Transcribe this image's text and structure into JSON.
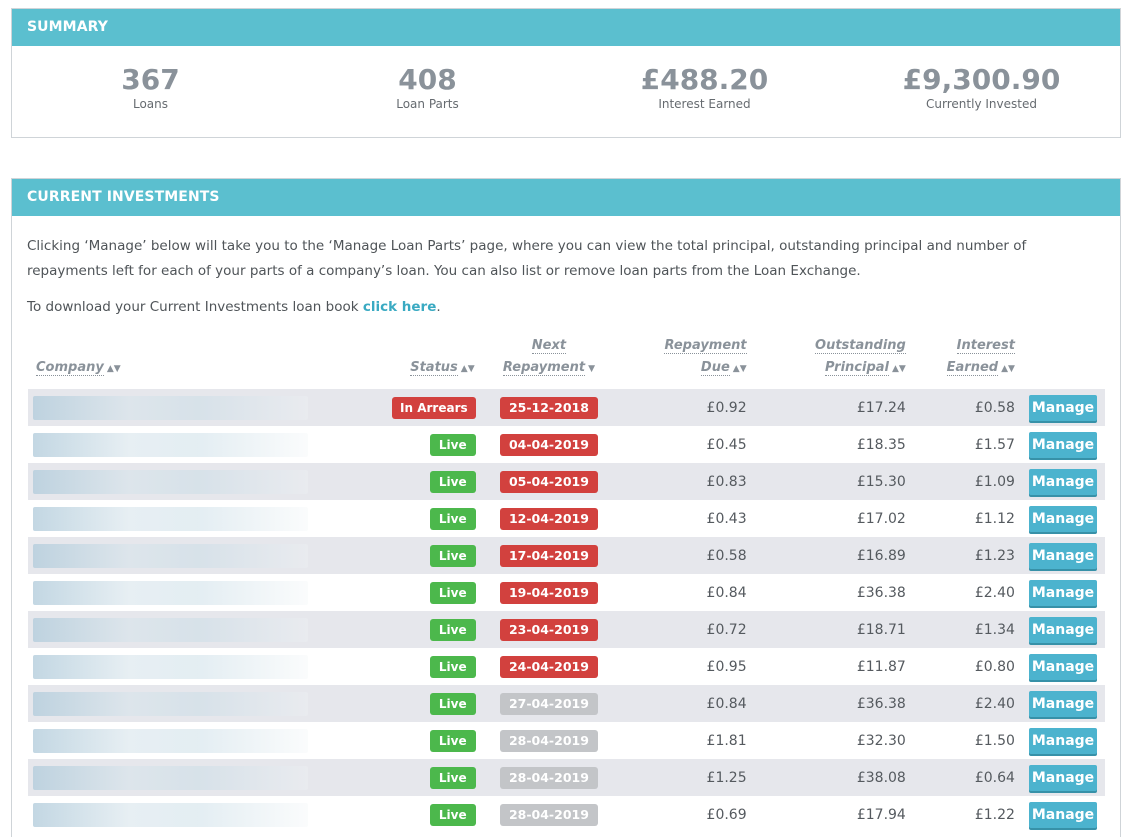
{
  "summary": {
    "title": "SUMMARY",
    "stats": [
      {
        "value": "367",
        "label": "Loans"
      },
      {
        "value": "408",
        "label": "Loan Parts"
      },
      {
        "value": "£488.20",
        "label": "Interest Earned"
      },
      {
        "value": "£9,300.90",
        "label": "Currently Invested"
      }
    ]
  },
  "investments": {
    "title": "CURRENT INVESTMENTS",
    "intro": "Clicking ‘Manage’ below will take you to the ‘Manage Loan Parts’ page, where you can view the total principal, outstanding principal and number of repayments left for each of your parts of a company’s loan. You can also list or remove loan parts from the Loan Exchange.",
    "download_prefix": "To download your Current Investments loan book ",
    "download_link": "click here",
    "download_suffix": ".",
    "columns": {
      "company": "Company",
      "status": "Status",
      "next_1": "Next",
      "next_2": "Repayment",
      "due_1": "Repayment",
      "due_2": "Due",
      "outstanding_1": "Outstanding",
      "outstanding_2": "Principal",
      "interest_1": "Interest",
      "interest_2": "Earned"
    },
    "manage_label": "Manage",
    "rows": [
      {
        "status": "In Arrears",
        "status_type": "arrears",
        "next": "25-12-2018",
        "next_type": "red",
        "due": "£0.92",
        "outstanding": "£17.24",
        "interest": "£0.58"
      },
      {
        "status": "Live",
        "status_type": "live",
        "next": "04-04-2019",
        "next_type": "red",
        "due": "£0.45",
        "outstanding": "£18.35",
        "interest": "£1.57"
      },
      {
        "status": "Live",
        "status_type": "live",
        "next": "05-04-2019",
        "next_type": "red",
        "due": "£0.83",
        "outstanding": "£15.30",
        "interest": "£1.09"
      },
      {
        "status": "Live",
        "status_type": "live",
        "next": "12-04-2019",
        "next_type": "red",
        "due": "£0.43",
        "outstanding": "£17.02",
        "interest": "£1.12"
      },
      {
        "status": "Live",
        "status_type": "live",
        "next": "17-04-2019",
        "next_type": "red",
        "due": "£0.58",
        "outstanding": "£16.89",
        "interest": "£1.23"
      },
      {
        "status": "Live",
        "status_type": "live",
        "next": "19-04-2019",
        "next_type": "red",
        "due": "£0.84",
        "outstanding": "£36.38",
        "interest": "£2.40"
      },
      {
        "status": "Live",
        "status_type": "live",
        "next": "23-04-2019",
        "next_type": "red",
        "due": "£0.72",
        "outstanding": "£18.71",
        "interest": "£1.34"
      },
      {
        "status": "Live",
        "status_type": "live",
        "next": "24-04-2019",
        "next_type": "red",
        "due": "£0.95",
        "outstanding": "£11.87",
        "interest": "£0.80"
      },
      {
        "status": "Live",
        "status_type": "live",
        "next": "27-04-2019",
        "next_type": "grey",
        "due": "£0.84",
        "outstanding": "£36.38",
        "interest": "£2.40"
      },
      {
        "status": "Live",
        "status_type": "live",
        "next": "28-04-2019",
        "next_type": "grey",
        "due": "£1.81",
        "outstanding": "£32.30",
        "interest": "£1.50"
      },
      {
        "status": "Live",
        "status_type": "live",
        "next": "28-04-2019",
        "next_type": "grey",
        "due": "£1.25",
        "outstanding": "£38.08",
        "interest": "£0.64"
      },
      {
        "status": "Live",
        "status_type": "live",
        "next": "28-04-2019",
        "next_type": "grey",
        "due": "£0.69",
        "outstanding": "£17.94",
        "interest": "£1.22"
      }
    ]
  },
  "colors": {
    "header": "#5bbfcf",
    "arrears": "#d2413e",
    "live": "#4cb84c",
    "upcoming": "#c3c5c8",
    "manage": "#4cb3ce"
  }
}
